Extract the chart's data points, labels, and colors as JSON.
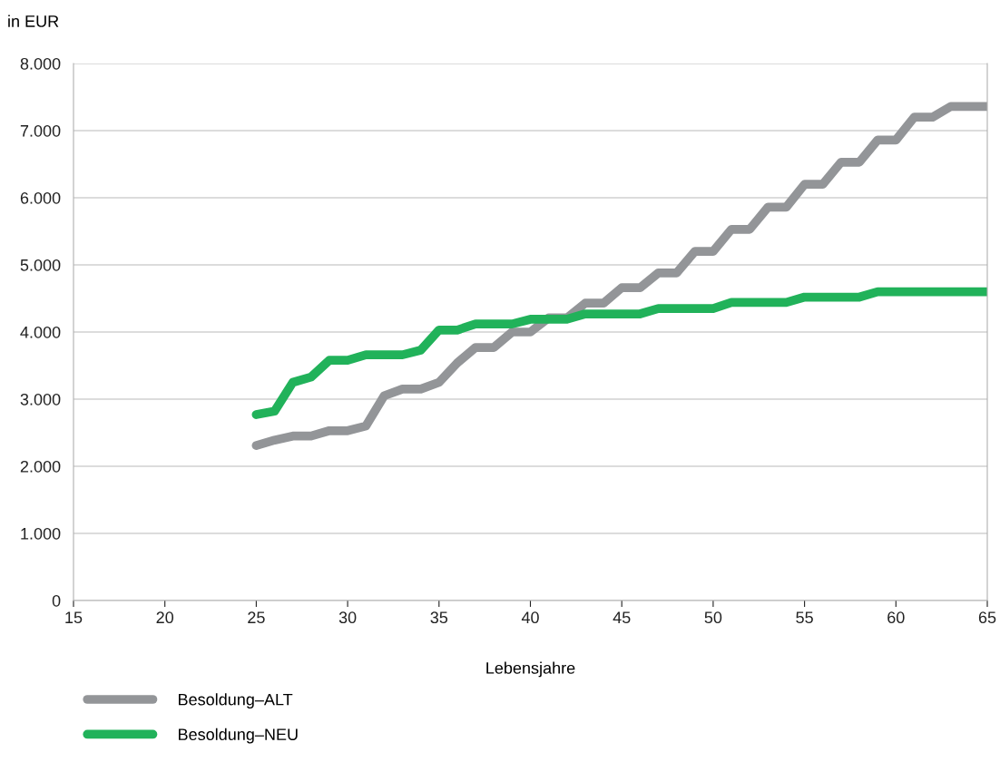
{
  "chart_data": {
    "type": "line",
    "ylabel": "in EUR",
    "xlabel": "Lebensjahre",
    "x": [
      25,
      26,
      27,
      28,
      29,
      30,
      31,
      32,
      33,
      34,
      35,
      36,
      37,
      38,
      39,
      40,
      41,
      42,
      43,
      44,
      45,
      46,
      47,
      48,
      49,
      50,
      51,
      52,
      53,
      54,
      55,
      56,
      57,
      58,
      59,
      60,
      61,
      62,
      63,
      64,
      65
    ],
    "series": [
      {
        "name": "Besoldung–ALT",
        "color": "#939598",
        "values": [
          2310,
          2390,
          2450,
          2450,
          2530,
          2530,
          2600,
          3050,
          3150,
          3150,
          3250,
          3540,
          3770,
          3770,
          4000,
          4000,
          4210,
          4210,
          4430,
          4430,
          4660,
          4660,
          4880,
          4880,
          5200,
          5200,
          5530,
          5530,
          5860,
          5860,
          6200,
          6200,
          6530,
          6530,
          6860,
          6860,
          7200,
          7200,
          7360,
          7360,
          7360
        ]
      },
      {
        "name": "Besoldung–NEU",
        "color": "#21b25a",
        "values": [
          2770,
          2820,
          3250,
          3330,
          3580,
          3580,
          3660,
          3660,
          3660,
          3730,
          4030,
          4030,
          4120,
          4120,
          4120,
          4190,
          4190,
          4190,
          4270,
          4270,
          4270,
          4270,
          4350,
          4350,
          4350,
          4350,
          4440,
          4440,
          4440,
          4440,
          4520,
          4520,
          4520,
          4520,
          4600,
          4600,
          4600,
          4600,
          4600,
          4600,
          4600
        ]
      }
    ],
    "xlim": [
      15,
      65
    ],
    "xticks": [
      15,
      20,
      25,
      30,
      35,
      40,
      45,
      50,
      55,
      60,
      65
    ],
    "ylim": [
      0,
      8000
    ],
    "yticks": [
      {
        "value": 0,
        "label": "0"
      },
      {
        "value": 1000,
        "label": "1.000"
      },
      {
        "value": 2000,
        "label": "2.000"
      },
      {
        "value": 3000,
        "label": "3.000"
      },
      {
        "value": 4000,
        "label": "4.000"
      },
      {
        "value": 5000,
        "label": "5.000"
      },
      {
        "value": 6000,
        "label": "6.000"
      },
      {
        "value": 7000,
        "label": "7.000"
      },
      {
        "value": 8000,
        "label": "8.000"
      }
    ],
    "grid": "y",
    "legend": "bottom left",
    "marker": "none",
    "line_style": "solid"
  }
}
